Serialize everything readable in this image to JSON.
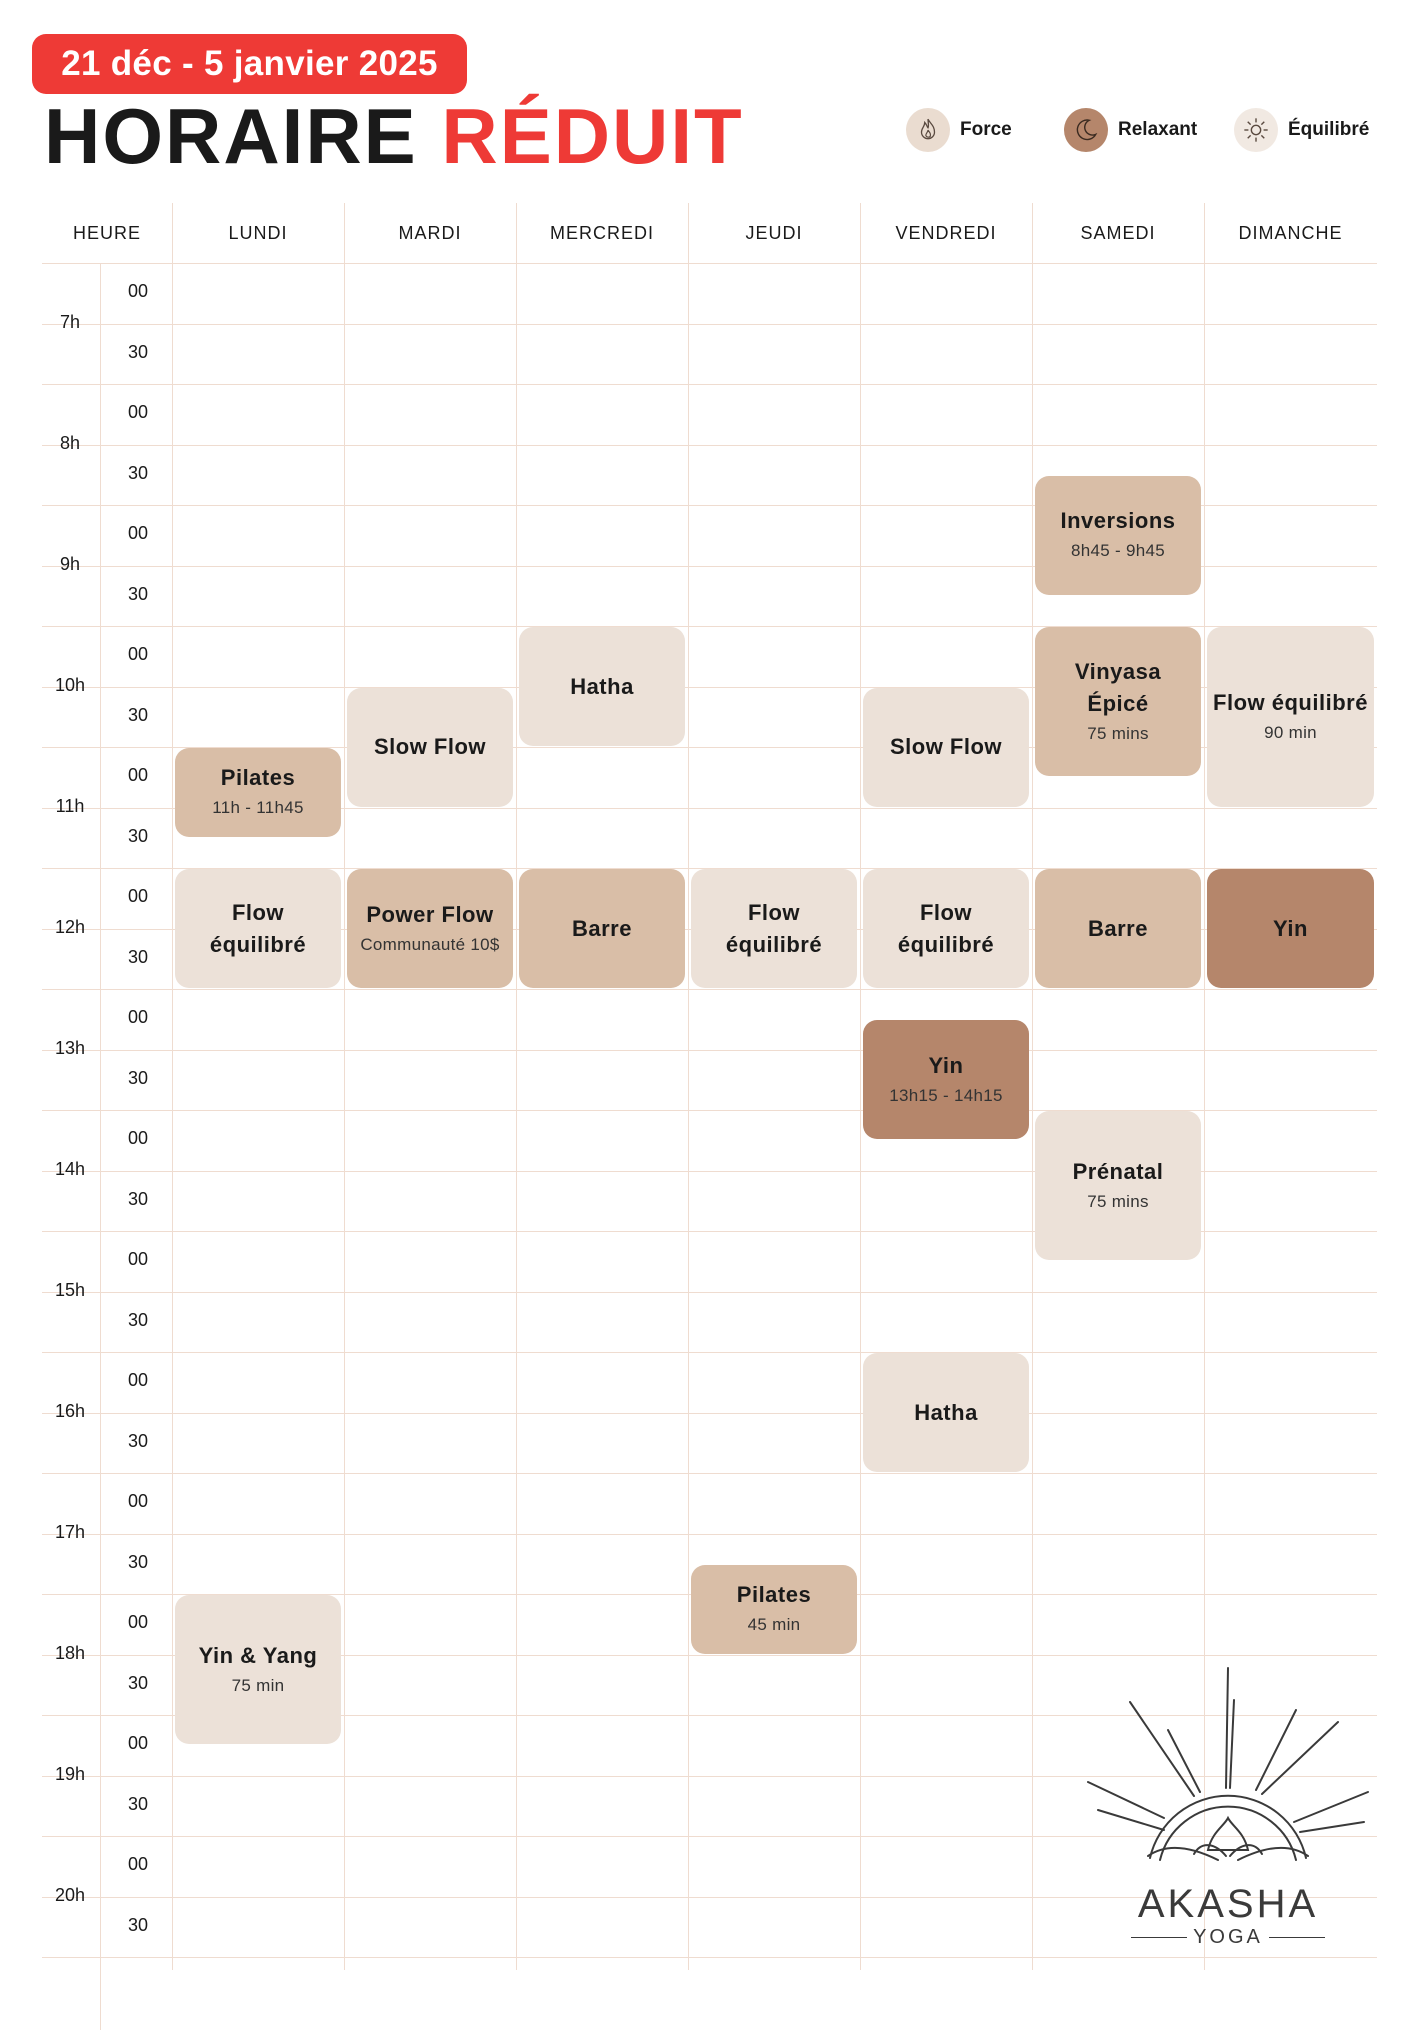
{
  "header": {
    "date_range": "21 déc - 5 janvier 2025",
    "title_main": "HORAIRE",
    "title_accent": "RÉDUIT"
  },
  "legend": [
    {
      "label": "Force",
      "icon": "flame-icon",
      "color": "#d9bea7"
    },
    {
      "label": "Relaxant",
      "icon": "moon-icon",
      "color": "#b5866b"
    },
    {
      "label": "Équilibré",
      "icon": "sun-icon",
      "color": "#ece1d8"
    }
  ],
  "table": {
    "hour_header": "HEURE",
    "days": [
      "LUNDI",
      "MARDI",
      "MERCREDI",
      "JEUDI",
      "VENDREDI",
      "SAMEDI",
      "DIMANCHE"
    ],
    "hours": [
      "7h",
      "8h",
      "9h",
      "10h",
      "11h",
      "12h",
      "13h",
      "14h",
      "15h",
      "16h",
      "17h",
      "18h",
      "19h",
      "20h"
    ],
    "minute_labels": [
      "00",
      "30"
    ]
  },
  "classes": [
    {
      "day": 0,
      "start": 11.0,
      "end": 11.75,
      "name": "Pilates",
      "sub": "11h - 11h45",
      "style": "mid"
    },
    {
      "day": 0,
      "start": 12.0,
      "end": 13.0,
      "name": "Flow équilibré",
      "sub": "",
      "style": "light"
    },
    {
      "day": 0,
      "start": 18.0,
      "end": 19.25,
      "name": "Yin & Yang",
      "sub": "75 min",
      "style": "light"
    },
    {
      "day": 1,
      "start": 10.5,
      "end": 11.5,
      "name": "Slow Flow",
      "sub": "",
      "style": "light"
    },
    {
      "day": 1,
      "start": 12.0,
      "end": 13.0,
      "name": "Power Flow",
      "sub": "Communauté 10$",
      "style": "mid"
    },
    {
      "day": 2,
      "start": 10.0,
      "end": 11.0,
      "name": "Hatha",
      "sub": "",
      "style": "light"
    },
    {
      "day": 2,
      "start": 12.0,
      "end": 13.0,
      "name": "Barre",
      "sub": "",
      "style": "mid"
    },
    {
      "day": 3,
      "start": 12.0,
      "end": 13.0,
      "name": "Flow équilibré",
      "sub": "",
      "style": "light"
    },
    {
      "day": 3,
      "start": 17.75,
      "end": 18.5,
      "name": "Pilates",
      "sub": "45 min",
      "style": "mid"
    },
    {
      "day": 4,
      "start": 10.5,
      "end": 11.5,
      "name": "Slow Flow",
      "sub": "",
      "style": "light"
    },
    {
      "day": 4,
      "start": 12.0,
      "end": 13.0,
      "name": "Flow équilibré",
      "sub": "",
      "style": "light"
    },
    {
      "day": 4,
      "start": 13.25,
      "end": 14.25,
      "name": "Yin",
      "sub": "13h15 - 14h15",
      "style": "dark"
    },
    {
      "day": 4,
      "start": 16.0,
      "end": 17.0,
      "name": "Hatha",
      "sub": "",
      "style": "light"
    },
    {
      "day": 5,
      "start": 8.75,
      "end": 9.75,
      "name": "Inversions",
      "sub": "8h45 - 9h45",
      "style": "mid"
    },
    {
      "day": 5,
      "start": 10.0,
      "end": 11.25,
      "name": "Vinyasa Épicé",
      "sub": "75 mins",
      "style": "mid"
    },
    {
      "day": 5,
      "start": 12.0,
      "end": 13.0,
      "name": "Barre",
      "sub": "",
      "style": "mid"
    },
    {
      "day": 5,
      "start": 14.0,
      "end": 15.25,
      "name": "Prénatal",
      "sub": "75 mins",
      "style": "light"
    },
    {
      "day": 6,
      "start": 10.0,
      "end": 11.5,
      "name": "Flow équilibré",
      "sub": "90 min",
      "style": "light"
    },
    {
      "day": 6,
      "start": 12.0,
      "end": 13.0,
      "name": "Yin",
      "sub": "",
      "style": "dark"
    }
  ],
  "brand": {
    "name": "AKASHA",
    "tagline": "YOGA"
  }
}
